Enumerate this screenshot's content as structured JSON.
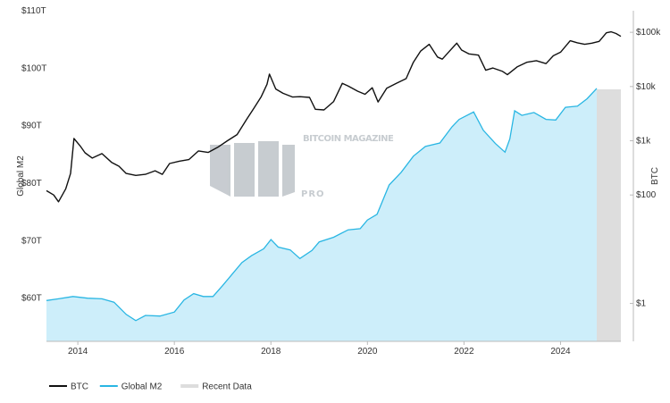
{
  "chart_data": {
    "type": "line",
    "left_axis": {
      "label": "Global M2",
      "ticks": [
        "$60T",
        "$70T",
        "$80T",
        "$90T",
        "$100T",
        "$110T"
      ],
      "tick_values": [
        60,
        70,
        80,
        90,
        100,
        110
      ],
      "range": [
        52.5,
        110
      ]
    },
    "right_axis": {
      "label": "BTC",
      "scale": "log",
      "ticks": [
        "$1",
        "$100",
        "$1k",
        "$10k",
        "$100k"
      ],
      "tick_values": [
        1,
        100,
        1000,
        10000,
        100000
      ],
      "range": [
        0.2,
        250000
      ]
    },
    "x_axis": {
      "ticks": [
        "2014",
        "2016",
        "2018",
        "2020",
        "2022",
        "2024"
      ],
      "tick_values": [
        2014,
        2016,
        2018,
        2020,
        2022,
        2024
      ],
      "range": [
        2013.35,
        2025.25
      ]
    },
    "recent_data_band": {
      "x_start": 2024.75,
      "x_end": 2025.25,
      "color": "#dddddd"
    },
    "legend": {
      "placement": "bottom-left",
      "items": [
        {
          "label": "BTC",
          "color": "#111111",
          "kind": "line"
        },
        {
          "label": "Global M2",
          "color": "#29b6e3",
          "kind": "line"
        },
        {
          "label": "Recent Data",
          "color": "#dddddd",
          "kind": "band"
        }
      ]
    },
    "series": [
      {
        "name": "BTC",
        "axis": "right",
        "color": "#111111",
        "points": [
          [
            2013.35,
            120
          ],
          [
            2013.5,
            100
          ],
          [
            2013.6,
            75
          ],
          [
            2013.75,
            130
          ],
          [
            2013.85,
            250
          ],
          [
            2013.92,
            1100
          ],
          [
            2014.05,
            800
          ],
          [
            2014.15,
            600
          ],
          [
            2014.3,
            480
          ],
          [
            2014.5,
            580
          ],
          [
            2014.7,
            400
          ],
          [
            2014.85,
            340
          ],
          [
            2015.0,
            250
          ],
          [
            2015.2,
            230
          ],
          [
            2015.4,
            240
          ],
          [
            2015.6,
            280
          ],
          [
            2015.75,
            240
          ],
          [
            2015.9,
            380
          ],
          [
            2016.1,
            420
          ],
          [
            2016.3,
            450
          ],
          [
            2016.5,
            650
          ],
          [
            2016.7,
            610
          ],
          [
            2016.9,
            760
          ],
          [
            2017.1,
            1000
          ],
          [
            2017.3,
            1300
          ],
          [
            2017.5,
            2500
          ],
          [
            2017.65,
            4000
          ],
          [
            2017.8,
            6500
          ],
          [
            2017.92,
            11000
          ],
          [
            2017.97,
            17000
          ],
          [
            2018.1,
            9000
          ],
          [
            2018.25,
            7500
          ],
          [
            2018.45,
            6400
          ],
          [
            2018.6,
            6500
          ],
          [
            2018.8,
            6300
          ],
          [
            2018.92,
            3800
          ],
          [
            2019.1,
            3700
          ],
          [
            2019.3,
            5300
          ],
          [
            2019.48,
            11500
          ],
          [
            2019.6,
            10200
          ],
          [
            2019.8,
            8200
          ],
          [
            2019.95,
            7200
          ],
          [
            2020.1,
            9500
          ],
          [
            2020.22,
            5200
          ],
          [
            2020.4,
            9300
          ],
          [
            2020.6,
            11500
          ],
          [
            2020.8,
            14000
          ],
          [
            2020.95,
            28000
          ],
          [
            2021.1,
            45000
          ],
          [
            2021.28,
            60000
          ],
          [
            2021.45,
            35000
          ],
          [
            2021.55,
            32000
          ],
          [
            2021.7,
            45000
          ],
          [
            2021.85,
            63000
          ],
          [
            2021.95,
            47000
          ],
          [
            2022.1,
            40000
          ],
          [
            2022.3,
            38000
          ],
          [
            2022.45,
            20000
          ],
          [
            2022.6,
            22000
          ],
          [
            2022.8,
            19000
          ],
          [
            2022.9,
            16500
          ],
          [
            2023.1,
            23000
          ],
          [
            2023.3,
            28000
          ],
          [
            2023.5,
            30000
          ],
          [
            2023.7,
            26500
          ],
          [
            2023.85,
            37000
          ],
          [
            2024.0,
            43000
          ],
          [
            2024.2,
            70000
          ],
          [
            2024.35,
            64000
          ],
          [
            2024.5,
            60000
          ],
          [
            2024.65,
            63000
          ],
          [
            2024.8,
            68000
          ],
          [
            2024.95,
            98000
          ],
          [
            2025.05,
            102000
          ],
          [
            2025.15,
            95000
          ],
          [
            2025.25,
            84000
          ]
        ]
      },
      {
        "name": "Global M2",
        "axis": "left",
        "color": "#29b6e3",
        "fill": "#cdeefa",
        "points": [
          [
            2013.35,
            59.6
          ],
          [
            2013.6,
            59.9
          ],
          [
            2013.9,
            60.3
          ],
          [
            2014.2,
            60.0
          ],
          [
            2014.5,
            59.9
          ],
          [
            2014.75,
            59.3
          ],
          [
            2015.0,
            57.2
          ],
          [
            2015.2,
            56.1
          ],
          [
            2015.4,
            57.0
          ],
          [
            2015.7,
            56.9
          ],
          [
            2016.0,
            57.6
          ],
          [
            2016.2,
            59.7
          ],
          [
            2016.4,
            60.8
          ],
          [
            2016.6,
            60.3
          ],
          [
            2016.8,
            60.3
          ],
          [
            2017.0,
            62.2
          ],
          [
            2017.2,
            64.2
          ],
          [
            2017.4,
            66.2
          ],
          [
            2017.6,
            67.4
          ],
          [
            2017.85,
            68.6
          ],
          [
            2018.0,
            70.2
          ],
          [
            2018.15,
            68.9
          ],
          [
            2018.4,
            68.4
          ],
          [
            2018.6,
            66.9
          ],
          [
            2018.85,
            68.3
          ],
          [
            2019.0,
            69.8
          ],
          [
            2019.3,
            70.6
          ],
          [
            2019.6,
            71.9
          ],
          [
            2019.85,
            72.1
          ],
          [
            2020.0,
            73.6
          ],
          [
            2020.2,
            74.6
          ],
          [
            2020.45,
            79.7
          ],
          [
            2020.7,
            81.9
          ],
          [
            2020.95,
            84.7
          ],
          [
            2021.2,
            86.4
          ],
          [
            2021.5,
            87.0
          ],
          [
            2021.75,
            89.8
          ],
          [
            2021.9,
            91.1
          ],
          [
            2022.2,
            92.4
          ],
          [
            2022.4,
            89.2
          ],
          [
            2022.65,
            86.9
          ],
          [
            2022.85,
            85.4
          ],
          [
            2022.95,
            87.7
          ],
          [
            2023.05,
            92.6
          ],
          [
            2023.2,
            91.8
          ],
          [
            2023.45,
            92.3
          ],
          [
            2023.7,
            91.1
          ],
          [
            2023.9,
            91.0
          ],
          [
            2024.1,
            93.2
          ],
          [
            2024.35,
            93.4
          ],
          [
            2024.55,
            94.7
          ],
          [
            2024.75,
            96.5
          ]
        ]
      }
    ]
  }
}
